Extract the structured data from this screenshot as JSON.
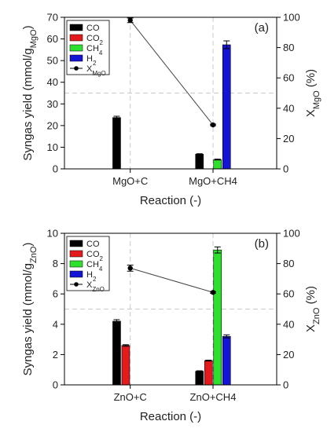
{
  "chart_data": [
    {
      "type": "bar",
      "panel_label": "(a)",
      "categories": [
        "MgO+C",
        "MgO+CH4"
      ],
      "xlabel": "Reaction (-)",
      "ylabel": {
        "text": "Syngas yield (mmol/g",
        "sub": "MgO",
        "tail": ")"
      },
      "ylim": [
        0,
        70
      ],
      "yticks": [
        0,
        10,
        20,
        30,
        40,
        50,
        60,
        70
      ],
      "y2label": {
        "text": "X",
        "sub": "MgO",
        "tail": " (%)"
      },
      "y2lim": [
        0,
        100
      ],
      "y2ticks": [
        0,
        20,
        40,
        60,
        80,
        100
      ],
      "grid": false,
      "legend_position": "top-left",
      "series": [
        {
          "name": "CO",
          "name_parts": [
            "CO",
            "",
            ""
          ],
          "color": "#000000",
          "values": [
            23.7,
            6.8
          ],
          "errors": [
            0.6,
            0.2
          ]
        },
        {
          "name": "CO2",
          "name_parts": [
            "CO",
            "2",
            ""
          ],
          "color": "#e41a1c",
          "values": [
            0,
            0
          ],
          "errors": [
            0,
            0
          ]
        },
        {
          "name": "CH4",
          "name_parts": [
            "CH",
            "4",
            ""
          ],
          "color": "#2ee02e",
          "values": [
            0,
            4.3
          ],
          "errors": [
            0,
            0.2
          ]
        },
        {
          "name": "H2",
          "name_parts": [
            "H",
            "2",
            ""
          ],
          "color": "#1414d4",
          "values": [
            0,
            57.3
          ],
          "errors": [
            0,
            1.8
          ]
        }
      ],
      "line": {
        "name": "XMgO",
        "name_parts": [
          "X",
          "MgO",
          ""
        ],
        "color": "#000000",
        "values": [
          98,
          29
        ],
        "errors": [
          1.5,
          0.5
        ]
      }
    },
    {
      "type": "bar",
      "panel_label": "(b)",
      "categories": [
        "ZnO+C",
        "ZnO+CH4"
      ],
      "xlabel": "Reaction (-)",
      "ylabel": {
        "text": "Syngas yield (mmol/g",
        "sub": "ZnO",
        "tail": ")"
      },
      "ylim": [
        0,
        10
      ],
      "yticks": [
        0,
        2,
        4,
        6,
        8,
        10
      ],
      "y2label": {
        "text": "X",
        "sub": "ZnO",
        "tail": " (%)"
      },
      "y2lim": [
        0,
        100
      ],
      "y2ticks": [
        0,
        20,
        40,
        60,
        80,
        100
      ],
      "grid": false,
      "legend_position": "top-left",
      "series": [
        {
          "name": "CO",
          "name_parts": [
            "CO",
            "",
            ""
          ],
          "color": "#000000",
          "values": [
            4.2,
            0.9
          ],
          "errors": [
            0.1,
            0.03
          ]
        },
        {
          "name": "CO2",
          "name_parts": [
            "CO",
            "2",
            ""
          ],
          "color": "#e41a1c",
          "values": [
            2.6,
            1.6
          ],
          "errors": [
            0.05,
            0.03
          ]
        },
        {
          "name": "CH4",
          "name_parts": [
            "CH",
            "4",
            ""
          ],
          "color": "#2ee02e",
          "values": [
            0,
            8.9
          ],
          "errors": [
            0,
            0.2
          ]
        },
        {
          "name": "H2",
          "name_parts": [
            "H",
            "2",
            ""
          ],
          "color": "#1414d4",
          "values": [
            0,
            3.2
          ],
          "errors": [
            0,
            0.1
          ]
        }
      ],
      "line": {
        "name": "XZnO",
        "name_parts": [
          "X",
          "ZnO",
          ""
        ],
        "color": "#000000",
        "values": [
          77,
          61
        ],
        "errors": [
          2,
          0.5
        ]
      }
    }
  ]
}
